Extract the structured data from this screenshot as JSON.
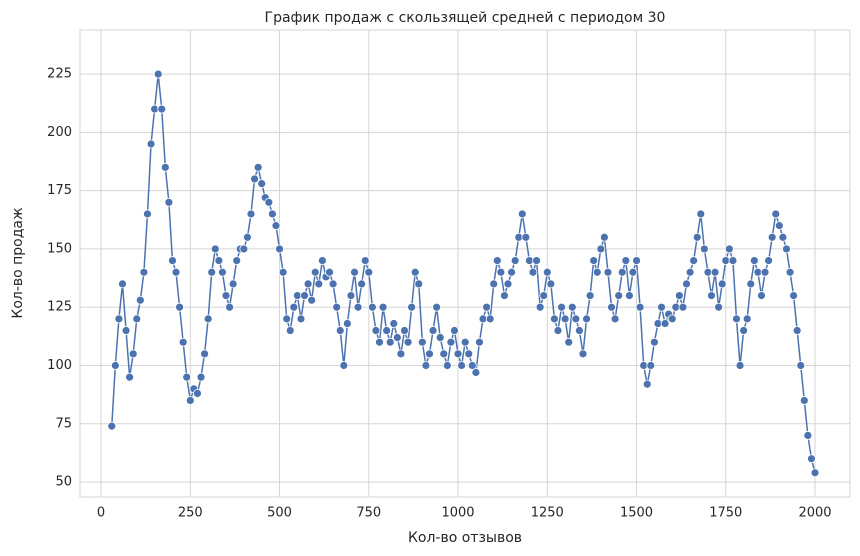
{
  "chart_data": {
    "type": "line",
    "title": "График продаж с скользящей средней с периодом 30",
    "x_label": "Кол-во отзывов",
    "y_label": "Кол-во продаж",
    "x": [
      30,
      40,
      50,
      60,
      70,
      80,
      90,
      100,
      110,
      120,
      130,
      140,
      150,
      160,
      170,
      180,
      190,
      200,
      210,
      220,
      230,
      240,
      250,
      260,
      270,
      280,
      290,
      300,
      310,
      320,
      330,
      340,
      350,
      360,
      370,
      380,
      390,
      400,
      410,
      420,
      430,
      440,
      450,
      460,
      470,
      480,
      490,
      500,
      510,
      520,
      530,
      540,
      550,
      560,
      570,
      580,
      590,
      600,
      610,
      620,
      630,
      640,
      650,
      660,
      670,
      680,
      690,
      700,
      710,
      720,
      730,
      740,
      750,
      760,
      770,
      780,
      790,
      800,
      810,
      820,
      830,
      840,
      850,
      860,
      870,
      880,
      890,
      900,
      910,
      920,
      930,
      940,
      950,
      960,
      970,
      980,
      990,
      1000,
      1010,
      1020,
      1030,
      1040,
      1050,
      1060,
      1070,
      1080,
      1090,
      1100,
      1110,
      1120,
      1130,
      1140,
      1150,
      1160,
      1170,
      1180,
      1190,
      1200,
      1210,
      1220,
      1230,
      1240,
      1250,
      1260,
      1270,
      1280,
      1290,
      1300,
      1310,
      1320,
      1330,
      1340,
      1350,
      1360,
      1370,
      1380,
      1390,
      1400,
      1410,
      1420,
      1430,
      1440,
      1450,
      1460,
      1470,
      1480,
      1490,
      1500,
      1510,
      1520,
      1530,
      1540,
      1550,
      1560,
      1570,
      1580,
      1590,
      1600,
      1610,
      1620,
      1630,
      1640,
      1650,
      1660,
      1670,
      1680,
      1690,
      1700,
      1710,
      1720,
      1730,
      1740,
      1750,
      1760,
      1770,
      1780,
      1790,
      1800,
      1810,
      1820,
      1830,
      1840,
      1850,
      1860,
      1870,
      1880,
      1890,
      1900,
      1910,
      1920,
      1930,
      1940,
      1950,
      1960,
      1970,
      1980,
      1990,
      2000
    ],
    "series": [
      {
        "color": "#4c72b0",
        "values": [
          74,
          100,
          120,
          135,
          115,
          95,
          105,
          120,
          128,
          140,
          165,
          195,
          210,
          225,
          210,
          185,
          170,
          145,
          140,
          125,
          110,
          95,
          85,
          90,
          88,
          95,
          105,
          120,
          140,
          150,
          145,
          140,
          130,
          125,
          135,
          145,
          150,
          150,
          155,
          165,
          180,
          185,
          178,
          172,
          170,
          165,
          160,
          150,
          140,
          120,
          115,
          125,
          130,
          120,
          130,
          135,
          128,
          140,
          135,
          145,
          138,
          140,
          135,
          125,
          115,
          100,
          118,
          130,
          140,
          125,
          135,
          145,
          140,
          125,
          115,
          110,
          125,
          115,
          110,
          118,
          112,
          105,
          115,
          110,
          125,
          140,
          135,
          110,
          100,
          105,
          115,
          125,
          112,
          105,
          100,
          110,
          115,
          105,
          100,
          110,
          105,
          100,
          97,
          110,
          120,
          125,
          120,
          135,
          145,
          140,
          130,
          135,
          140,
          145,
          155,
          165,
          155,
          145,
          140,
          145,
          125,
          130,
          140,
          135,
          120,
          115,
          125,
          120,
          110,
          125,
          120,
          115,
          105,
          120,
          130,
          145,
          140,
          150,
          155,
          140,
          125,
          120,
          130,
          140,
          145,
          130,
          140,
          145,
          125,
          100,
          92,
          100,
          110,
          118,
          125,
          118,
          122,
          120,
          125,
          130,
          125,
          135,
          140,
          145,
          155,
          165,
          150,
          140,
          130,
          140,
          125,
          135,
          145,
          150,
          145,
          120,
          100,
          115,
          120,
          135,
          145,
          140,
          130,
          140,
          145,
          155,
          165,
          160,
          155,
          150,
          140,
          130,
          115,
          100,
          85,
          70,
          60,
          54
        ]
      }
    ],
    "xlim": [
      -59,
      2098
    ],
    "ylim": [
      43.6,
      243.9
    ],
    "xticks": [
      0,
      250,
      500,
      750,
      1000,
      1250,
      1500,
      1750,
      2000
    ],
    "yticks": [
      50,
      75,
      100,
      125,
      150,
      175,
      200,
      225
    ],
    "grid": true
  }
}
